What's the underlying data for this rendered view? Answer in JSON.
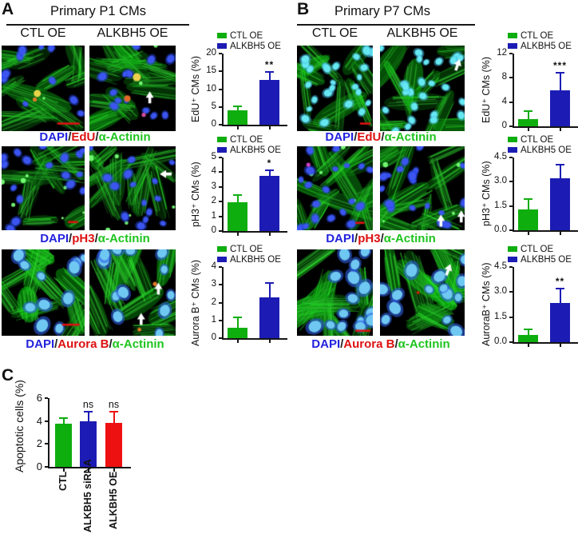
{
  "figure": {
    "sep": "/",
    "panels": {
      "A": {
        "label": "A",
        "title": "Primary P1 CMs",
        "columns": [
          "CTL OE",
          "ALKBH5 OE"
        ],
        "captions": [
          {
            "dapi": "DAPI",
            "stain": "EdU",
            "actinin": "α-Actinin"
          },
          {
            "dapi": "DAPI",
            "stain": "pH3",
            "actinin": "α-Actinin"
          },
          {
            "dapi": "DAPI",
            "stain": "Aurora B",
            "actinin": "α-Actinin"
          }
        ]
      },
      "B": {
        "label": "B",
        "title": "Primary P7 CMs",
        "columns": [
          "CTL OE",
          "ALKBH5 OE"
        ],
        "captions": [
          {
            "dapi": "DAPI",
            "stain": "EdU",
            "actinin": "α-Actinin"
          },
          {
            "dapi": "DAPI",
            "stain": "pH3",
            "actinin": "α-Actinin"
          },
          {
            "dapi": "DAPI",
            "stain": "Aurora B",
            "actinin": "α-Actinin"
          }
        ]
      },
      "C": {
        "label": "C"
      }
    }
  },
  "colors": {
    "green": "#0fae0f",
    "blue": "#1c1cb4",
    "red": "#ee1111",
    "dapi_blue": "#2323dd",
    "stain_red": "#dd1111",
    "actinin_green": "#1ec41e",
    "scalebar_red": "#dd1111",
    "axis_black": "#161616"
  },
  "chart_data": [
    {
      "id": "A-EdU",
      "type": "bar",
      "ylabel": "EdU⁺ CMs (%)",
      "legend": [
        "CTL OE",
        "ALKBH5 OE"
      ],
      "legend_colors": [
        "green",
        "blue"
      ],
      "categories": [
        "CTL OE",
        "ALKBH5 OE"
      ],
      "values": [
        4.0,
        12.7
      ],
      "errors": [
        1.5,
        2.4
      ],
      "significance": [
        "",
        "**"
      ],
      "yticks": [
        0,
        5,
        10,
        15,
        20
      ],
      "ylim": [
        0,
        20
      ],
      "grid": false,
      "legend_position": "top"
    },
    {
      "id": "A-pH3",
      "type": "bar",
      "ylabel": "pH3⁺ CMs (%)",
      "legend": [
        "CTL OE",
        "ALKBH5 OE"
      ],
      "legend_colors": [
        "green",
        "blue"
      ],
      "categories": [
        "CTL OE",
        "ALKBH5 OE"
      ],
      "values": [
        1.95,
        3.75
      ],
      "errors": [
        0.55,
        0.45
      ],
      "significance": [
        "",
        "*"
      ],
      "yticks": [
        0,
        1,
        2,
        3,
        4,
        5
      ],
      "ylim": [
        0,
        5
      ],
      "grid": false,
      "legend_position": "top"
    },
    {
      "id": "A-AuroraB",
      "type": "bar",
      "ylabel": "Aurora B⁺ CMs (%)",
      "legend": [
        "CTL OE",
        "ALKBH5 OE"
      ],
      "legend_colors": [
        "green",
        "blue"
      ],
      "categories": [
        "CTL OE",
        "ALKBH5 OE"
      ],
      "values": [
        0.6,
        2.3
      ],
      "errors": [
        0.6,
        0.85
      ],
      "significance": [
        "",
        ""
      ],
      "yticks": [
        0,
        1,
        2,
        3,
        4
      ],
      "ylim": [
        0,
        4
      ],
      "grid": false,
      "legend_position": "top"
    },
    {
      "id": "B-EdU",
      "type": "bar",
      "ylabel": "EdU⁺ CMs (%)",
      "legend": [
        "CTL OE",
        "ALKBH5 OE"
      ],
      "legend_colors": [
        "green",
        "blue"
      ],
      "categories": [
        "CTL OE",
        "ALKBH5 OE"
      ],
      "values": [
        1.2,
        6.0
      ],
      "errors": [
        1.4,
        3.0
      ],
      "significance": [
        "",
        "***"
      ],
      "yticks": [
        0,
        4,
        8,
        12
      ],
      "ylim": [
        0,
        12
      ],
      "grid": false,
      "legend_position": "top"
    },
    {
      "id": "B-pH3",
      "type": "bar",
      "ylabel": "pH3⁺ CMs (%)",
      "legend": [
        "CTL OE",
        "ALKBH5 OE"
      ],
      "legend_colors": [
        "green",
        "blue"
      ],
      "categories": [
        "CTL OE",
        "ALKBH5 OE"
      ],
      "values": [
        1.3,
        3.2
      ],
      "errors": [
        0.7,
        0.9
      ],
      "significance": [
        "",
        ""
      ],
      "yticks": [
        "0.0",
        "1.5",
        "3.0",
        "4.5"
      ],
      "ylim": [
        0,
        4.5
      ],
      "grid": false,
      "legend_position": "top"
    },
    {
      "id": "B-AuroraB",
      "type": "bar",
      "ylabel": "AuroraB⁺ CMs (%)",
      "legend": [
        "CTL OE",
        "ALKBH5 OE"
      ],
      "legend_colors": [
        "green",
        "blue"
      ],
      "categories": [
        "CTL OE",
        "ALKBH5 OE"
      ],
      "values": [
        0.45,
        2.35
      ],
      "errors": [
        0.35,
        0.9
      ],
      "significance": [
        "",
        "**"
      ],
      "yticks": [
        "0.0",
        "1.5",
        "3.0",
        "4.5"
      ],
      "ylim": [
        0,
        4.5
      ],
      "grid": false,
      "legend_position": "top"
    },
    {
      "id": "C-apoptosis",
      "type": "bar",
      "ylabel": "Apoptotic cells (%)",
      "categories": [
        "CTL",
        "ALKBH5 siRNA",
        "ALKBH5 OE"
      ],
      "bar_colors": [
        "green",
        "blue",
        "red"
      ],
      "values": [
        3.8,
        3.95,
        3.85
      ],
      "errors": [
        0.5,
        0.95,
        1.0
      ],
      "significance": [
        "",
        "ns",
        "ns"
      ],
      "yticks": [
        0,
        2,
        4,
        6
      ],
      "ylim": [
        0,
        6
      ],
      "grid": false,
      "legend_position": "none"
    }
  ]
}
